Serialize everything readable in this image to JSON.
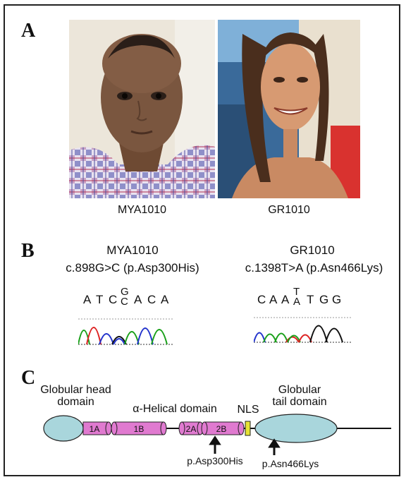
{
  "panelA": {
    "letter": "A",
    "patients": [
      {
        "id": "MYA1010"
      },
      {
        "id": "GR1010"
      }
    ]
  },
  "panelB": {
    "letter": "B",
    "left": {
      "id": "MYA1010",
      "mutation": "c.898G>C (p.Asp300His)",
      "bases": [
        "A",
        "T",
        "C",
        "G/C",
        "A",
        "C",
        "A"
      ]
    },
    "right": {
      "id": "GR1010",
      "mutation": "c.1398T>A (p.Asn466Lys)",
      "bases": [
        "C",
        "A",
        "A",
        "T/A",
        "T",
        "G",
        "G"
      ]
    },
    "trace_colors": {
      "A": "#1aa01a",
      "C": "#2233cc",
      "G": "#111111",
      "T": "#dd2222"
    }
  },
  "panelC": {
    "letter": "C",
    "head_label": "Globular head domain",
    "rod_label": "α-Helical domain",
    "nls_label": "NLS",
    "tail_label": "Globular tail domain",
    "segments": [
      "1A",
      "1B",
      "2A",
      "2B"
    ],
    "mutations": [
      "p.Asp300His",
      "p.Asn466Lys"
    ],
    "colors": {
      "globular": "#a9d6dc",
      "helix": "#e07ad0",
      "nls": "#e6e235"
    }
  }
}
